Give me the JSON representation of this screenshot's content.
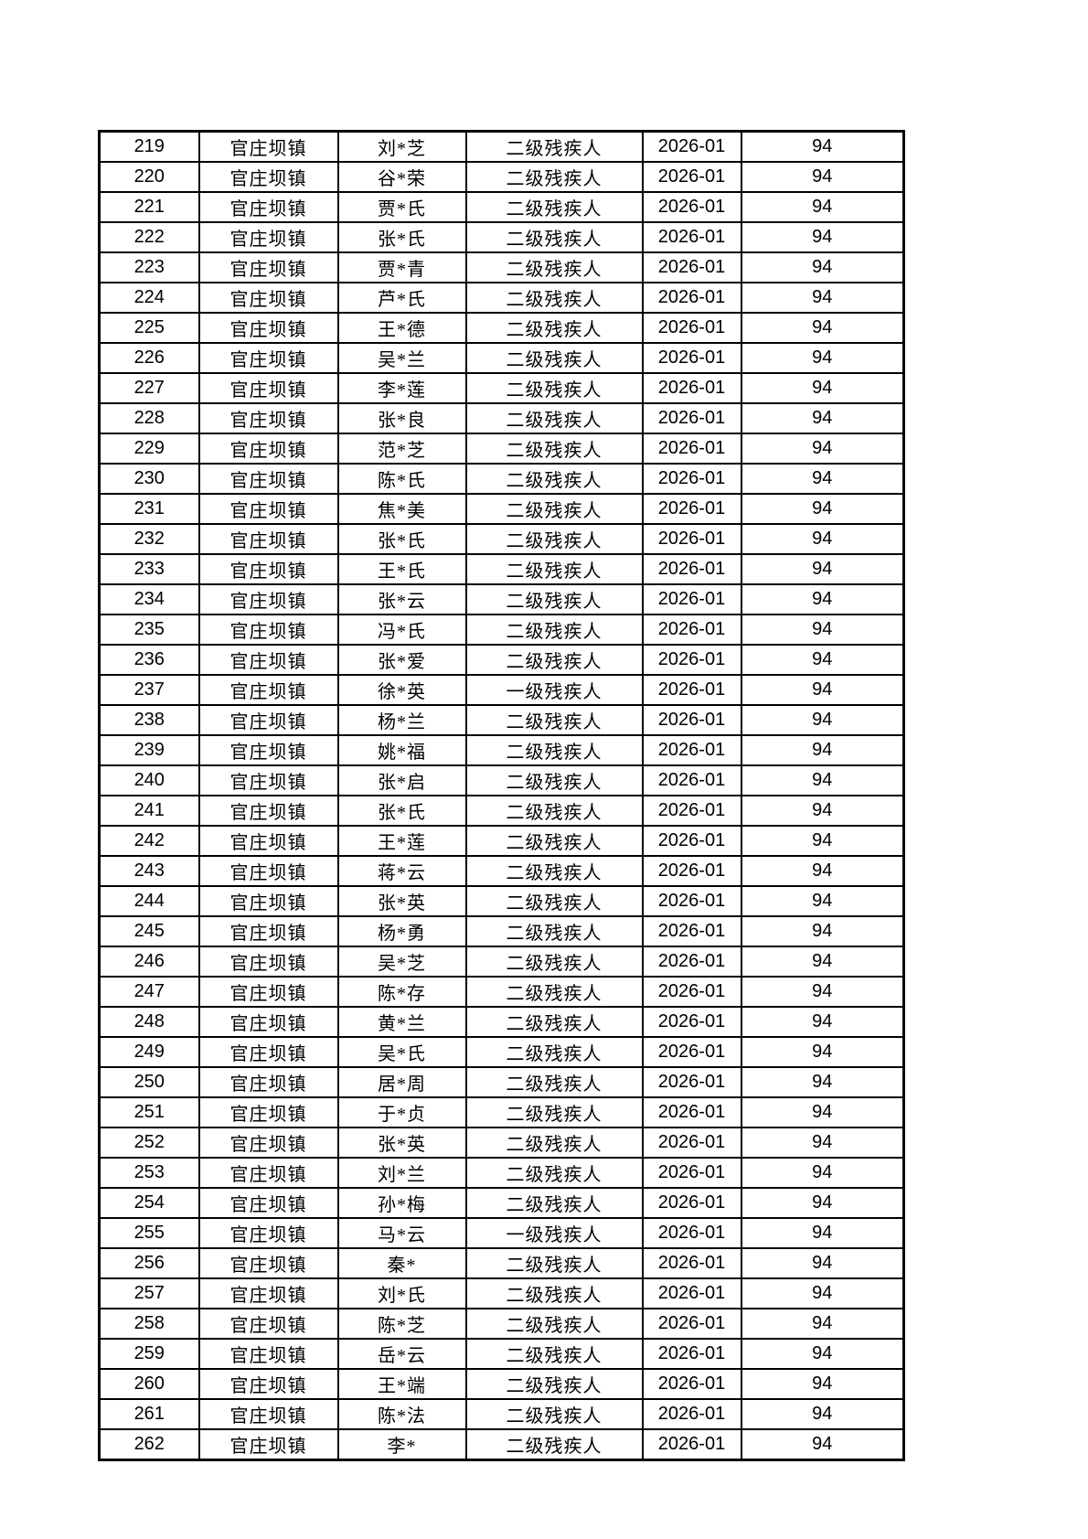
{
  "page": {
    "background_color": "#ffffff",
    "text_color": "#000000",
    "border_color": "#000000"
  },
  "table": {
    "rows": [
      [
        "219",
        "官庄坝镇",
        "刘*芝",
        "二级残疾人",
        "2026-01",
        "94"
      ],
      [
        "220",
        "官庄坝镇",
        "谷*荣",
        "二级残疾人",
        "2026-01",
        "94"
      ],
      [
        "221",
        "官庄坝镇",
        "贾*氏",
        "二级残疾人",
        "2026-01",
        "94"
      ],
      [
        "222",
        "官庄坝镇",
        "张*氏",
        "二级残疾人",
        "2026-01",
        "94"
      ],
      [
        "223",
        "官庄坝镇",
        "贾*青",
        "二级残疾人",
        "2026-01",
        "94"
      ],
      [
        "224",
        "官庄坝镇",
        "芦*氏",
        "二级残疾人",
        "2026-01",
        "94"
      ],
      [
        "225",
        "官庄坝镇",
        "王*德",
        "二级残疾人",
        "2026-01",
        "94"
      ],
      [
        "226",
        "官庄坝镇",
        "吴*兰",
        "二级残疾人",
        "2026-01",
        "94"
      ],
      [
        "227",
        "官庄坝镇",
        "李*莲",
        "二级残疾人",
        "2026-01",
        "94"
      ],
      [
        "228",
        "官庄坝镇",
        "张*良",
        "二级残疾人",
        "2026-01",
        "94"
      ],
      [
        "229",
        "官庄坝镇",
        "范*芝",
        "二级残疾人",
        "2026-01",
        "94"
      ],
      [
        "230",
        "官庄坝镇",
        "陈*氏",
        "二级残疾人",
        "2026-01",
        "94"
      ],
      [
        "231",
        "官庄坝镇",
        "焦*美",
        "二级残疾人",
        "2026-01",
        "94"
      ],
      [
        "232",
        "官庄坝镇",
        "张*氏",
        "二级残疾人",
        "2026-01",
        "94"
      ],
      [
        "233",
        "官庄坝镇",
        "王*氏",
        "二级残疾人",
        "2026-01",
        "94"
      ],
      [
        "234",
        "官庄坝镇",
        "张*云",
        "二级残疾人",
        "2026-01",
        "94"
      ],
      [
        "235",
        "官庄坝镇",
        "冯*氏",
        "二级残疾人",
        "2026-01",
        "94"
      ],
      [
        "236",
        "官庄坝镇",
        "张*爱",
        "二级残疾人",
        "2026-01",
        "94"
      ],
      [
        "237",
        "官庄坝镇",
        "徐*英",
        "一级残疾人",
        "2026-01",
        "94"
      ],
      [
        "238",
        "官庄坝镇",
        "杨*兰",
        "二级残疾人",
        "2026-01",
        "94"
      ],
      [
        "239",
        "官庄坝镇",
        "姚*福",
        "二级残疾人",
        "2026-01",
        "94"
      ],
      [
        "240",
        "官庄坝镇",
        "张*启",
        "二级残疾人",
        "2026-01",
        "94"
      ],
      [
        "241",
        "官庄坝镇",
        "张*氏",
        "二级残疾人",
        "2026-01",
        "94"
      ],
      [
        "242",
        "官庄坝镇",
        "王*莲",
        "二级残疾人",
        "2026-01",
        "94"
      ],
      [
        "243",
        "官庄坝镇",
        "蒋*云",
        "二级残疾人",
        "2026-01",
        "94"
      ],
      [
        "244",
        "官庄坝镇",
        "张*英",
        "二级残疾人",
        "2026-01",
        "94"
      ],
      [
        "245",
        "官庄坝镇",
        "杨*勇",
        "二级残疾人",
        "2026-01",
        "94"
      ],
      [
        "246",
        "官庄坝镇",
        "吴*芝",
        "二级残疾人",
        "2026-01",
        "94"
      ],
      [
        "247",
        "官庄坝镇",
        "陈*存",
        "二级残疾人",
        "2026-01",
        "94"
      ],
      [
        "248",
        "官庄坝镇",
        "黄*兰",
        "二级残疾人",
        "2026-01",
        "94"
      ],
      [
        "249",
        "官庄坝镇",
        "吴*氏",
        "二级残疾人",
        "2026-01",
        "94"
      ],
      [
        "250",
        "官庄坝镇",
        "居*周",
        "二级残疾人",
        "2026-01",
        "94"
      ],
      [
        "251",
        "官庄坝镇",
        "于*贞",
        "二级残疾人",
        "2026-01",
        "94"
      ],
      [
        "252",
        "官庄坝镇",
        "张*英",
        "二级残疾人",
        "2026-01",
        "94"
      ],
      [
        "253",
        "官庄坝镇",
        "刘*兰",
        "二级残疾人",
        "2026-01",
        "94"
      ],
      [
        "254",
        "官庄坝镇",
        "孙*梅",
        "二级残疾人",
        "2026-01",
        "94"
      ],
      [
        "255",
        "官庄坝镇",
        "马*云",
        "一级残疾人",
        "2026-01",
        "94"
      ],
      [
        "256",
        "官庄坝镇",
        "秦*",
        "二级残疾人",
        "2026-01",
        "94"
      ],
      [
        "257",
        "官庄坝镇",
        "刘*氏",
        "二级残疾人",
        "2026-01",
        "94"
      ],
      [
        "258",
        "官庄坝镇",
        "陈*芝",
        "二级残疾人",
        "2026-01",
        "94"
      ],
      [
        "259",
        "官庄坝镇",
        "岳*云",
        "二级残疾人",
        "2026-01",
        "94"
      ],
      [
        "260",
        "官庄坝镇",
        "王*端",
        "二级残疾人",
        "2026-01",
        "94"
      ],
      [
        "261",
        "官庄坝镇",
        "陈*法",
        "二级残疾人",
        "2026-01",
        "94"
      ],
      [
        "262",
        "官庄坝镇",
        "李*",
        "二级残疾人",
        "2026-01",
        "94"
      ]
    ]
  }
}
